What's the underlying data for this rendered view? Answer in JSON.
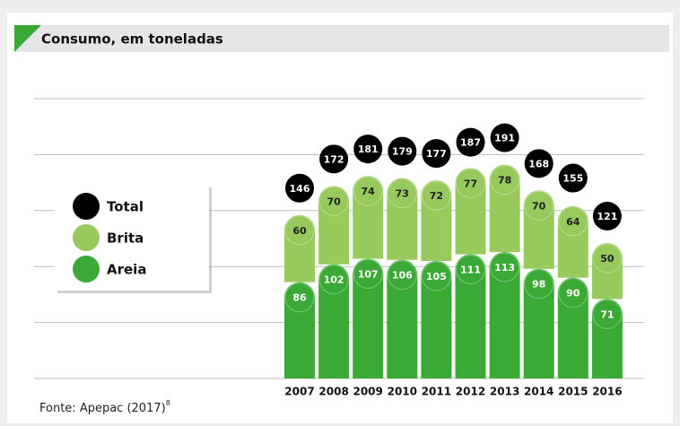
{
  "chart_data": {
    "type": "stacked-bar",
    "title": "Consumo, em toneladas",
    "categories": [
      "2007",
      "2008",
      "2009",
      "2010",
      "2011",
      "2012",
      "2013",
      "2014",
      "2015",
      "2016"
    ],
    "series": [
      {
        "name": "Areia",
        "color": "#3aa935",
        "values": [
          86,
          102,
          107,
          106,
          105,
          111,
          113,
          98,
          90,
          71
        ]
      },
      {
        "name": "Brita",
        "color": "#97c95c",
        "values": [
          60,
          70,
          74,
          73,
          72,
          77,
          78,
          70,
          64,
          50
        ]
      }
    ],
    "total": {
      "name": "Total",
      "color": "#000000",
      "values": [
        146,
        172,
        181,
        179,
        177,
        187,
        191,
        168,
        155,
        121
      ]
    },
    "ylim": [
      0,
      250
    ],
    "yticks": [
      0,
      50,
      100,
      150,
      200,
      250
    ],
    "grid": true,
    "source": "Fonte: Apepac (2017)",
    "source_note": "8"
  }
}
